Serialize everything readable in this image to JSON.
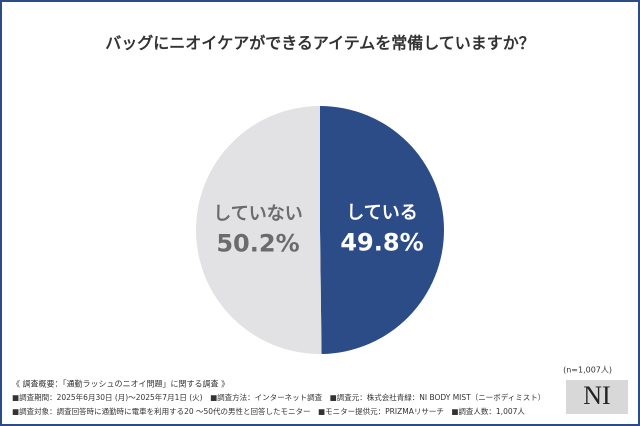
{
  "chart_data": {
    "type": "pie",
    "title": "バッグにニオイケアができるアイテムを常備していますか？",
    "categories": [
      "している",
      "していない"
    ],
    "values": [
      49.8,
      50.2
    ],
    "value_labels": [
      "49.8%",
      "50.2%"
    ],
    "colors": [
      "#2c4c88",
      "#e2e2e4"
    ],
    "label_colors": [
      "#ffffff",
      "#6b6b6b"
    ],
    "note": "(n=1,007人)",
    "source_heading": "《 調査概要：「通勤ラッシュのニオイ問題」に関する調査 》",
    "source_lines": [
      "■調査期間：2025年6月30日 (月)～2025年7月1日 (火)　■調査方法：インターネット調査　■調査元：株式会社青緑：NI BODY MIST（ニーボディミスト）",
      "■調査対象：調査回答時に通勤時に電車を利用する20 ～50代の男性と回答したモニター　■モニター提供元：PRIZMAリサーチ　■調査人数：1,007人"
    ],
    "logo": "NI"
  }
}
